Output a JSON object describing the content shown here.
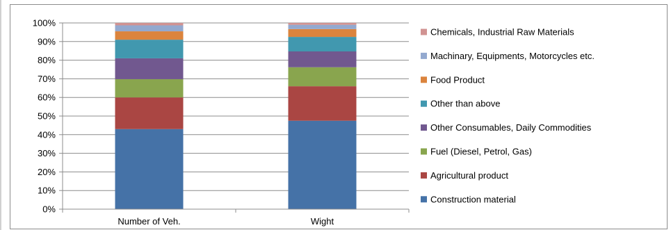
{
  "chart_data": {
    "type": "bar",
    "stacked": "percent",
    "categories": [
      "Number of Veh.",
      "Wight"
    ],
    "y_ticks": [
      "0%",
      "10%",
      "20%",
      "30%",
      "40%",
      "50%",
      "60%",
      "70%",
      "80%",
      "90%",
      "100%"
    ],
    "ylim": [
      0,
      100
    ],
    "legend_position": "right",
    "series": [
      {
        "name": "Construction material",
        "color": "#4572a7",
        "values": [
          43,
          47.5
        ]
      },
      {
        "name": "Agricultural product",
        "color": "#aa4643",
        "values": [
          17,
          18.5
        ]
      },
      {
        "name": "Fuel (Diesel, Petrol, Gas)",
        "color": "#89a54e",
        "values": [
          9.8,
          10.2
        ]
      },
      {
        "name": "Other Consumables, Daily Commodities",
        "color": "#71588f",
        "values": [
          11.2,
          8.5
        ]
      },
      {
        "name": "Other than above",
        "color": "#4198af",
        "values": [
          10,
          7.8
        ]
      },
      {
        "name": "Food Product",
        "color": "#db843d",
        "values": [
          4.5,
          4.2
        ]
      },
      {
        "name": "Machinary, Equipments, Motorcycles etc.",
        "color": "#93a9cf",
        "values": [
          3.2,
          2.3
        ]
      },
      {
        "name": "Chemicals, Industrial Raw Materials",
        "color": "#d19392",
        "values": [
          1.3,
          1.0
        ]
      }
    ]
  }
}
